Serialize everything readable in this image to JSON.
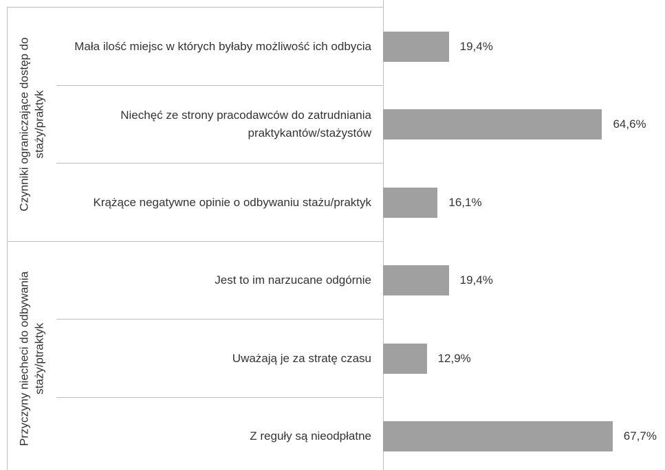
{
  "chart_data": {
    "type": "bar",
    "color": "#a0a0a0",
    "groups": [
      {
        "label": "Czynniki ograniczające dostęp do staży/praktyk",
        "categories": [
          "Mała ilość miejsc w których byłaby możliwość ich odbycia",
          "Niechęć ze strony pracodawców do zatrudniania praktykantów/stażystów",
          "Krążące negatywne opinie o odbywaniu stażu/praktyk"
        ],
        "values": [
          19.4,
          64.6,
          16.1
        ],
        "value_labels": [
          "19,4%",
          "64,6%",
          "16,1%"
        ]
      },
      {
        "label": "Przyczyny niecheci do odbywania staży/ptraktyk",
        "categories": [
          "Jest to im narzucane odgórnie",
          "Uważają je za stratę czasu",
          "Z reguły są nieodpłatne"
        ],
        "values": [
          19.4,
          12.9,
          67.7
        ],
        "value_labels": [
          "19,4%",
          "12,9%",
          "67,7%"
        ]
      }
    ]
  }
}
